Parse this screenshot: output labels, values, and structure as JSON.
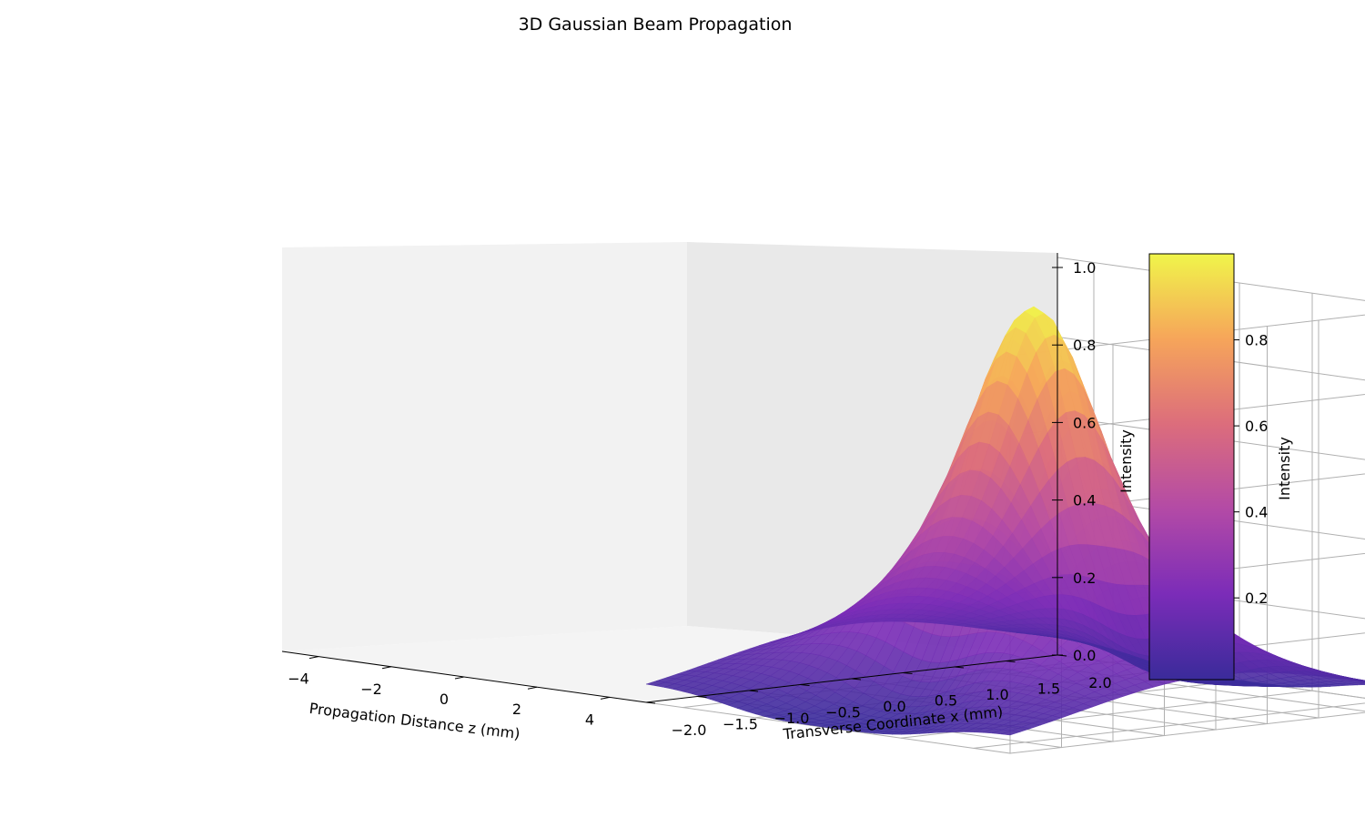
{
  "chart_data": {
    "type": "surface3d",
    "title": "3D Gaussian Beam Propagation",
    "xlabel": "Propagation Distance z (mm)",
    "ylabel": "Transverse Coordinate x (mm)",
    "zlabel": "Intensity",
    "colorbar_label": "Intensity",
    "colormap": "plasma",
    "grid": true,
    "z_ticks": [
      "0.0",
      "0.2",
      "0.4",
      "0.6",
      "0.8",
      "1.0"
    ],
    "x_ticks": [
      "−4",
      "−2",
      "0",
      "2",
      "4"
    ],
    "y_ticks": [
      "−2.0",
      "−1.5",
      "−1.0",
      "−0.5",
      "0.0",
      "0.5",
      "1.0",
      "1.5",
      "2.0"
    ],
    "colorbar_ticks": [
      "0.2",
      "0.4",
      "0.6",
      "0.8"
    ],
    "zlim": [
      0,
      1
    ],
    "xlim": [
      -5,
      5
    ],
    "ylim": [
      -2,
      2
    ],
    "colorbar_range": [
      0.01,
      1.0
    ],
    "surface": {
      "function": "Gaussian beam intensity I(z, x) = (w0/w(z))^2 * exp(-2 x^2 / w(z)^2), w(z) = w0*sqrt(1+(z/zR)^2)",
      "w0": 1.0,
      "zR": 2.0,
      "peak": 1.0,
      "peak_at": [
        0,
        0
      ]
    }
  }
}
